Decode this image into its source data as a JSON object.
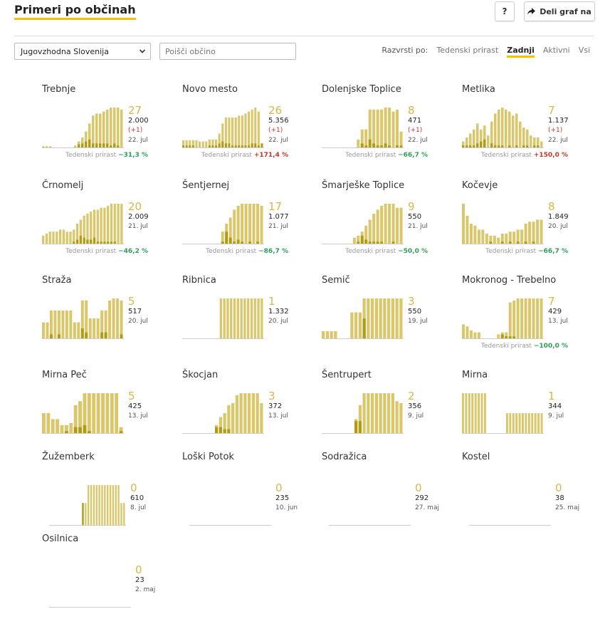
{
  "header": {
    "title": "Primeri po občinah",
    "help_label": "?",
    "share_label": "Deli graf na"
  },
  "filters": {
    "region": "Jugovzhodna Slovenija",
    "search_placeholder": "Poišči občino"
  },
  "sort": {
    "label": "Razvrsti po:",
    "options": [
      "Tedenski prirast",
      "Zadnji",
      "Aktivni",
      "Vsi"
    ],
    "active": "Zadnji"
  },
  "trend_label": "Tedenski prirast",
  "colors": {
    "bar": "#d9c76a",
    "bar_dark": "#b29a12",
    "number": "#d4b84a",
    "up": "#c0392b",
    "down": "#2e9e5b",
    "accent": "#f2c400"
  },
  "municipalities": [
    {
      "name": "Trebnje",
      "active": "27",
      "total": "2.000",
      "delta": "(+1)",
      "date": "22. jul",
      "trend": "−31,3 %",
      "dir": "down",
      "bars": [
        0.03,
        0.03,
        0.03,
        0,
        0,
        0,
        0,
        0,
        0,
        0.05,
        0.15,
        0.25,
        0.4,
        0.6,
        0.8,
        0.85,
        0.85,
        0.9,
        0.95,
        1,
        1,
        1,
        0.95
      ],
      "dark": [
        0,
        0,
        0,
        0,
        0,
        0,
        0,
        0,
        0,
        0,
        0.08,
        0.1,
        0.15,
        0.2,
        0.1,
        0.1,
        0.1,
        0.1,
        0.1,
        0.05,
        0.1,
        0.05,
        0
      ]
    },
    {
      "name": "Novo mesto",
      "active": "26",
      "total": "5.356",
      "delta": "(+1)",
      "date": "22. jul",
      "trend": "+171,4 %",
      "dir": "up",
      "bars": [
        0.18,
        0.18,
        0.18,
        0.18,
        0.18,
        0.15,
        0.15,
        0.15,
        0.2,
        0.2,
        0.2,
        0.35,
        0.6,
        0.75,
        0.75,
        0.75,
        0.75,
        0.8,
        0.8,
        0.85,
        0.9,
        0.95,
        1,
        0.9,
        0.1
      ],
      "dark": [
        0.05,
        0.05,
        0.05,
        0.05,
        0,
        0,
        0,
        0,
        0.05,
        0.05,
        0.05,
        0.1,
        0.15,
        0.1,
        0.1,
        0.05,
        0.05,
        0.05,
        0.05,
        0.05,
        0.05,
        0.1,
        0.1,
        0.05,
        0.1
      ]
    },
    {
      "name": "Dolenjske Toplice",
      "active": "8",
      "total": "471",
      "delta": "(+1)",
      "date": "22. jul",
      "trend": "−66,7 %",
      "dir": "down",
      "bars": [
        0,
        0,
        0,
        0,
        0,
        0,
        0,
        0,
        0,
        0.2,
        0.45,
        0.45,
        0.95,
        0.95,
        0.95,
        0.95,
        1,
        1,
        0.9,
        0.95,
        0.4
      ],
      "dark": [
        0,
        0,
        0,
        0,
        0,
        0,
        0,
        0,
        0,
        0,
        0.1,
        0.05,
        0.2,
        0.1,
        0.05,
        0.05,
        0.1,
        0.05,
        0,
        0.05,
        0.05
      ]
    },
    {
      "name": "Metlika",
      "active": "7",
      "total": "1.137",
      "delta": "(+1)",
      "date": "22. jul",
      "trend": "+150,0 %",
      "dir": "up",
      "bars": [
        0.15,
        0.25,
        0.35,
        0.45,
        0.6,
        0.45,
        0.55,
        0.3,
        0.65,
        0.85,
        0.95,
        1,
        0.95,
        0.9,
        0.8,
        0.85,
        0.65,
        0.5,
        0.45,
        0.3,
        0.25,
        0.25,
        0.15
      ],
      "dark": [
        0.05,
        0.05,
        0.05,
        0.05,
        0.1,
        0.15,
        0.2,
        0,
        0.1,
        0.05,
        0.05,
        0.05,
        0,
        0.05,
        0,
        0.05,
        0,
        0.05,
        0.05,
        0,
        0.05,
        0.05,
        0
      ]
    },
    {
      "name": "Črnomelj",
      "active": "20",
      "total": "2.009",
      "delta": "",
      "date": "21. jul",
      "trend": "−46,2 %",
      "dir": "down",
      "bars": [
        0.2,
        0.25,
        0.3,
        0.3,
        0.3,
        0.35,
        0.35,
        0.3,
        0.3,
        0.35,
        0.5,
        0.6,
        0.7,
        0.75,
        0.8,
        0.85,
        0.85,
        0.9,
        0.9,
        0.95,
        1,
        1,
        1,
        1
      ],
      "dark": [
        0,
        0,
        0,
        0,
        0,
        0,
        0,
        0,
        0,
        0.05,
        0.1,
        0.2,
        0.15,
        0.1,
        0.1,
        0.15,
        0.05,
        0.05,
        0.05,
        0.05,
        0.05,
        0.05,
        0,
        0
      ]
    },
    {
      "name": "Šentjernej",
      "active": "17",
      "total": "1.077",
      "delta": "",
      "date": "21. jul",
      "trend": "−86,7 %",
      "dir": "down",
      "bars": [
        0,
        0,
        0,
        0,
        0,
        0,
        0,
        0,
        0,
        0,
        0.3,
        0.5,
        0.65,
        0.85,
        0.95,
        1,
        1,
        1,
        1,
        1,
        0.95
      ],
      "dark": [
        0,
        0,
        0,
        0,
        0,
        0,
        0,
        0,
        0,
        0,
        0.05,
        0.3,
        0.15,
        0.05,
        0.1,
        0.05,
        0,
        0.05,
        0,
        0.05,
        0
      ]
    },
    {
      "name": "Šmarješke Toplice",
      "active": "9",
      "total": "550",
      "delta": "",
      "date": "21. jul",
      "trend": "−50,0 %",
      "dir": "down",
      "bars": [
        0,
        0,
        0,
        0,
        0,
        0,
        0,
        0,
        0.15,
        0.2,
        0.3,
        0.45,
        0.6,
        0.75,
        0.85,
        0.95,
        1,
        1,
        1,
        0.9,
        0.9
      ],
      "dark": [
        0,
        0,
        0,
        0,
        0,
        0,
        0,
        0,
        0,
        0.05,
        0.2,
        0.1,
        0.05,
        0.05,
        0.05,
        0.05,
        0,
        0,
        0.05,
        0,
        0
      ]
    },
    {
      "name": "Kočevje",
      "active": "8",
      "total": "1.849",
      "delta": "",
      "date": "20. jul",
      "trend": "−66,7 %",
      "dir": "down",
      "bars": [
        1,
        0.7,
        0.5,
        0.45,
        0.35,
        0.35,
        0.25,
        0.2,
        0.2,
        0.15,
        0.25,
        0.25,
        0.3,
        0.3,
        0.35,
        0.35,
        0.5,
        0.55,
        0.55,
        0.6,
        0.6
      ],
      "dark": [
        0,
        0,
        0,
        0,
        0,
        0,
        0,
        0.05,
        0,
        0,
        0.05,
        0,
        0.05,
        0,
        0.05,
        0,
        0.05,
        0,
        0.05,
        0,
        0
      ]
    },
    {
      "name": "Straža",
      "active": "5",
      "total": "517",
      "delta": "",
      "date": "20. jul",
      "trend": "",
      "dir": "",
      "bars": [
        0.4,
        0.4,
        0.7,
        0.7,
        0.7,
        0.7,
        0.7,
        0.7,
        0.4,
        0.4,
        0.95,
        0.95,
        0.5,
        0.5,
        0.5,
        0.7,
        0.7,
        0.95,
        1,
        1,
        0.95
      ],
      "dark": [
        0,
        0,
        0.1,
        0,
        0.1,
        0,
        0,
        0,
        0,
        0,
        0.25,
        0.15,
        0,
        0,
        0,
        0.15,
        0.15,
        0,
        0,
        0,
        0.1
      ]
    },
    {
      "name": "Ribnica",
      "active": "1",
      "total": "1.332",
      "delta": "",
      "date": "20. jul",
      "trend": "",
      "dir": "",
      "bars": [
        0,
        0,
        0,
        0,
        0,
        0,
        0,
        0,
        0,
        0,
        0,
        1,
        1,
        1,
        1,
        1,
        1,
        1,
        1,
        1,
        1,
        1,
        1,
        1
      ],
      "dark": [
        0,
        0,
        0,
        0,
        0,
        0,
        0,
        0,
        0,
        0,
        0,
        0,
        0,
        0,
        0,
        0,
        0,
        0,
        0,
        0,
        0,
        0,
        0,
        0
      ]
    },
    {
      "name": "Semič",
      "active": "3",
      "total": "550",
      "delta": "",
      "date": "19. jul",
      "trend": "",
      "dir": "",
      "bars": [
        0.18,
        0.18,
        0.18,
        0.18,
        0,
        0,
        0,
        0.65,
        0.65,
        0.65,
        1,
        1,
        1,
        1,
        1,
        1,
        1,
        1,
        1,
        1
      ],
      "dark": [
        0,
        0,
        0,
        0,
        0,
        0,
        0,
        0,
        0,
        0,
        0.5,
        0,
        0,
        0,
        0,
        0,
        0,
        0,
        0,
        0
      ]
    },
    {
      "name": "Mokronog - Trebelno",
      "active": "7",
      "total": "429",
      "delta": "",
      "date": "13. jul",
      "trend": "−100,0 %",
      "dir": "down",
      "bars": [
        0.35,
        0.3,
        0.2,
        0.15,
        0.15,
        0,
        0,
        0,
        0,
        0.1,
        0.15,
        0.15,
        0.9,
        0.95,
        1,
        1,
        1,
        1,
        1,
        1,
        1
      ],
      "dark": [
        0,
        0,
        0,
        0,
        0,
        0,
        0,
        0,
        0,
        0,
        0.1,
        0.05,
        0.05,
        0.05,
        0,
        0,
        0,
        0,
        0,
        0,
        0
      ]
    },
    {
      "name": "Mirna Peč",
      "active": "5",
      "total": "425",
      "delta": "",
      "date": "13. jul",
      "trend": "",
      "dir": "",
      "bars": [
        0.5,
        0.5,
        0.35,
        0.35,
        0.2,
        0.2,
        0.25,
        0.7,
        0.8,
        1,
        1,
        1,
        1,
        1,
        1,
        1,
        1,
        0.15
      ],
      "dark": [
        0,
        0,
        0,
        0,
        0,
        0.05,
        0,
        0.15,
        0.15,
        0.2,
        0.05,
        0,
        0,
        0,
        0,
        0,
        0,
        0.05
      ]
    },
    {
      "name": "Škocjan",
      "active": "3",
      "total": "372",
      "delta": "",
      "date": "13. jul",
      "trend": "",
      "dir": "",
      "bars": [
        0,
        0,
        0,
        0,
        0,
        0,
        0,
        0,
        0.2,
        0.4,
        0.5,
        0.7,
        0.75,
        0.95,
        1,
        1,
        1,
        1,
        1,
        0.75
      ],
      "dark": [
        0,
        0,
        0,
        0,
        0,
        0,
        0,
        0,
        0.15,
        0.15,
        0.1,
        0.1,
        0,
        0,
        0,
        0,
        0,
        0,
        0,
        0
      ]
    },
    {
      "name": "Šentrupert",
      "active": "2",
      "total": "356",
      "delta": "",
      "date": "9. jul",
      "trend": "",
      "dir": "",
      "bars": [
        0,
        0,
        0,
        0,
        0,
        0,
        0,
        0,
        0.35,
        0.7,
        1,
        1,
        1,
        1,
        1,
        1,
        1,
        1,
        0.8,
        0.75
      ],
      "dark": [
        0,
        0,
        0,
        0,
        0,
        0,
        0,
        0,
        0.3,
        0.3,
        0,
        0,
        0,
        0,
        0,
        0,
        0,
        0,
        0,
        0
      ]
    },
    {
      "name": "Mirna",
      "active": "1",
      "total": "344",
      "delta": "",
      "date": "9. jul",
      "trend": "",
      "dir": "",
      "bars": [
        1,
        1,
        1,
        1,
        1,
        1,
        1,
        1,
        0,
        0,
        0,
        0,
        0,
        0,
        0.5,
        0.5,
        0.5,
        0.5,
        0.5,
        0.5,
        0.5,
        0.5,
        0.5,
        0.5,
        0.5,
        0.5
      ],
      "dark": [
        0,
        0,
        0,
        0,
        0,
        0,
        0,
        0,
        0,
        0,
        0,
        0,
        0,
        0,
        0,
        0,
        0,
        0,
        0,
        0,
        0,
        0,
        0,
        0,
        0,
        0
      ]
    },
    {
      "name": "Žužemberk",
      "active": "0",
      "total": "610",
      "delta": "",
      "date": "8. jul",
      "trend": "",
      "dir": "",
      "bars": [
        0,
        0,
        0,
        0,
        0,
        0,
        0,
        0,
        0,
        0,
        0,
        0,
        0.55,
        0.55,
        1,
        1,
        1,
        1,
        1,
        1,
        1,
        1,
        1,
        1,
        1,
        1,
        0.55,
        0.55
      ],
      "dark": [
        0,
        0,
        0,
        0,
        0,
        0,
        0,
        0,
        0,
        0,
        0,
        0,
        0.55,
        0,
        0,
        0,
        0,
        0,
        0,
        0,
        0,
        0,
        0,
        0,
        0,
        0,
        0,
        0
      ]
    },
    {
      "name": "Loški Potok",
      "active": "0",
      "total": "235",
      "delta": "",
      "date": "10. jun",
      "trend": "",
      "dir": "",
      "bars": [],
      "dark": []
    },
    {
      "name": "Sodražica",
      "active": "0",
      "total": "292",
      "delta": "",
      "date": "27. maj",
      "trend": "",
      "dir": "",
      "bars": [],
      "dark": []
    },
    {
      "name": "Kostel",
      "active": "0",
      "total": "38",
      "delta": "",
      "date": "25. maj",
      "trend": "",
      "dir": "",
      "bars": [],
      "dark": []
    },
    {
      "name": "Osilnica",
      "active": "0",
      "total": "23",
      "delta": "",
      "date": "2. maj",
      "trend": "",
      "dir": "",
      "bars": [],
      "dark": []
    }
  ]
}
